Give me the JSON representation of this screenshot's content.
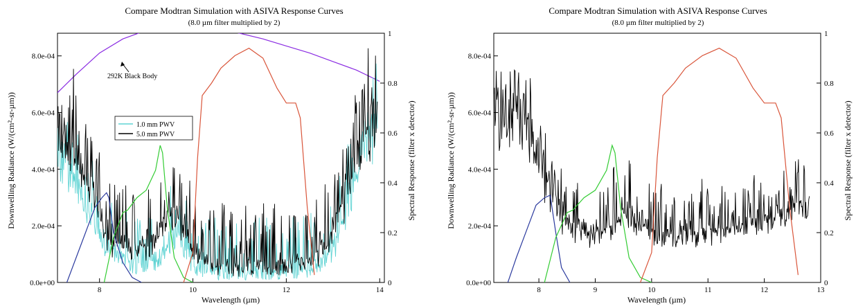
{
  "chart_data": [
    {
      "type": "line",
      "title": "Compare Modtran Simulation with ASIVA Response Curves",
      "subtitle": "(8.0 µm filter multiplied by 2)",
      "xlabel": "Wavelength (µm)",
      "ylabel": "Downwelling Radiance (W/(cm²-sr-µm))",
      "y2label": "Spectral Response (filter x detector)",
      "xlim": [
        7.1,
        14.1
      ],
      "ylim": [
        0,
        0.00088
      ],
      "y2lim": [
        0,
        1
      ],
      "xticks": [
        8,
        10,
        12,
        14
      ],
      "yticks": [
        0,
        0.0002,
        0.0004,
        0.0006,
        0.0008
      ],
      "ytick_labels": [
        "0.0e+00",
        "2.0e-04",
        "4.0e-04",
        "6.0e-04",
        "8.0e-04"
      ],
      "y2ticks": [
        0,
        0.2,
        0.4,
        0.6,
        0.8,
        1
      ],
      "y2tick_labels": [
        "0",
        "0.2",
        "0.4",
        "0.6",
        "0.8",
        "1"
      ],
      "legend": {
        "placement": "upper-left-center",
        "entries": [
          {
            "label": "1.0 mm PWV",
            "color": "#5fd3d3"
          },
          {
            "label": "5.0 mm PWV",
            "color": "#000000"
          }
        ]
      },
      "annotation": {
        "text": "292K Black Body",
        "arrow_to": [
          8.7,
          0.00089
        ]
      },
      "series": [
        {
          "name": "292K Black Body",
          "color": "#8a2be2",
          "axis": "left",
          "kind": "smooth",
          "x": [
            7.1,
            7.5,
            8.0,
            8.5,
            9.0,
            9.5,
            9.9,
            10.5,
            11.0,
            11.5,
            12.0,
            12.5,
            13.0,
            13.5,
            14.0
          ],
          "y": [
            0.00067,
            0.000735,
            0.00081,
            0.00086,
            0.00089,
            0.000902,
            0.000903,
            0.000895,
            0.00088,
            0.00086,
            0.000835,
            0.00081,
            0.00078,
            0.00075,
            0.00071
          ]
        },
        {
          "name": "1.0 mm PWV",
          "color": "#5fd3d3",
          "axis": "left",
          "kind": "noisy",
          "x": [
            7.1,
            7.3,
            7.5,
            7.7,
            7.9,
            8.0,
            8.1,
            8.2,
            8.3,
            8.5,
            8.7,
            9.0,
            9.3,
            9.5,
            9.7,
            9.9,
            10.0,
            10.2,
            10.5,
            11.0,
            11.5,
            12.0,
            12.5,
            12.8,
            13.0,
            13.2,
            13.4,
            13.6,
            13.8,
            13.95
          ],
          "y": [
            0.00048,
            0.00042,
            0.00036,
            0.00026,
            0.0002,
            0.00016,
            0.00012,
            0.0001,
            8e-05,
            6e-05,
            4e-05,
            4e-05,
            6e-05,
            0.00012,
            0.00018,
            8e-05,
            4e-05,
            2e-05,
            1e-05,
            1e-05,
            1e-05,
            1e-05,
            2e-05,
            5e-05,
            0.0001,
            0.0002,
            0.00035,
            0.00048,
            0.00058,
            0.00064
          ],
          "amp": 0.00014
        },
        {
          "name": "5.0 mm PWV",
          "color": "#000000",
          "axis": "left",
          "kind": "noisy",
          "x": [
            7.1,
            7.3,
            7.5,
            7.7,
            7.9,
            8.0,
            8.1,
            8.2,
            8.4,
            8.6,
            8.8,
            9.0,
            9.3,
            9.5,
            9.7,
            9.9,
            10.0,
            10.3,
            10.6,
            11.0,
            11.5,
            12.0,
            12.4,
            12.8,
            13.0,
            13.2,
            13.4,
            13.6,
            13.8,
            13.95
          ],
          "y": [
            0.00062,
            0.00058,
            0.00052,
            0.00042,
            0.00032,
            0.00024,
            0.00018,
            0.00014,
            0.00012,
            0.0001,
            0.0001,
            0.0001,
            0.00016,
            0.00024,
            0.00022,
            0.00016,
            8e-05,
            4e-05,
            3e-05,
            3e-05,
            3e-05,
            3e-05,
            5e-05,
            0.0001,
            0.00018,
            0.00028,
            0.00042,
            0.00055,
            0.00062,
            0.00066
          ],
          "amp": 0.00016
        },
        {
          "name": "",
          "color": "#2b3a9e",
          "axis": "right",
          "kind": "smooth",
          "x": [
            7.3,
            7.5,
            7.7,
            7.9,
            8.05,
            8.15,
            8.2,
            8.3,
            8.5,
            8.7,
            8.9
          ],
          "y": [
            0.0,
            0.1,
            0.2,
            0.3,
            0.34,
            0.36,
            0.34,
            0.2,
            0.08,
            0.02,
            0.0
          ]
        },
        {
          "name": "",
          "color": "#33cc33",
          "axis": "right",
          "kind": "smooth",
          "x": [
            8.1,
            8.3,
            8.5,
            8.6,
            8.8,
            9.0,
            9.2,
            9.3,
            9.35,
            9.45,
            9.6,
            9.8,
            10.0
          ],
          "y": [
            0.0,
            0.18,
            0.28,
            0.29,
            0.34,
            0.37,
            0.45,
            0.55,
            0.52,
            0.3,
            0.1,
            0.02,
            0.0
          ]
        },
        {
          "name": "",
          "color": "#d9553a",
          "axis": "right",
          "kind": "smooth",
          "x": [
            9.8,
            10.0,
            10.1,
            10.2,
            10.4,
            10.6,
            10.9,
            11.2,
            11.5,
            11.8,
            12.0,
            12.2,
            12.3,
            12.45,
            12.6
          ],
          "y": [
            0.0,
            0.12,
            0.5,
            0.75,
            0.8,
            0.86,
            0.91,
            0.94,
            0.9,
            0.78,
            0.72,
            0.72,
            0.66,
            0.3,
            0.03
          ]
        }
      ]
    },
    {
      "type": "line",
      "title": "Compare Modtran Simulation with ASIVA Response Curves",
      "subtitle": "(8.0 µm filter multiplied by 2)",
      "xlabel": "Wavelength (µm)",
      "ylabel": "Downwelling Radiance (W/(cm²-sr-µm))",
      "y2label": "Spectral Response (filter x detector)",
      "xlim": [
        7.2,
        13.0
      ],
      "ylim": [
        0,
        0.00088
      ],
      "y2lim": [
        0,
        1
      ],
      "xticks": [
        8,
        9,
        10,
        11,
        12,
        13
      ],
      "yticks": [
        0,
        0.0002,
        0.0004,
        0.0006,
        0.0008
      ],
      "ytick_labels": [
        "0.0e+00",
        "2.0e-04",
        "4.0e-04",
        "6.0e-04",
        "8.0e-04"
      ],
      "y2ticks": [
        0,
        0.2,
        0.4,
        0.6,
        0.8,
        1
      ],
      "y2tick_labels": [
        "0",
        "0.2",
        "0.4",
        "0.6",
        "0.8",
        "1"
      ],
      "series": [
        {
          "name": "",
          "color": "#000000",
          "axis": "left",
          "kind": "noisy",
          "x": [
            7.2,
            7.4,
            7.6,
            7.8,
            8.0,
            8.1,
            8.2,
            8.4,
            8.6,
            8.8,
            9.0,
            9.2,
            9.4,
            9.6,
            9.8,
            10.0,
            10.2,
            10.5,
            11.0,
            11.5,
            12.0,
            12.3,
            12.6,
            12.8
          ],
          "y": [
            0.00066,
            0.00068,
            0.00066,
            0.00064,
            0.00052,
            0.00042,
            0.00034,
            0.00025,
            0.0002,
            0.00018,
            0.00018,
            0.0002,
            0.00024,
            0.00026,
            0.00022,
            0.00017,
            0.00016,
            0.00017,
            0.00018,
            0.0002,
            0.00022,
            0.00024,
            0.00028,
            0.0003
          ],
          "amp": 0.00013
        },
        {
          "name": "",
          "color": "#2b3a9e",
          "axis": "right",
          "kind": "smooth",
          "x": [
            7.45,
            7.6,
            7.8,
            7.95,
            8.1,
            8.2,
            8.3,
            8.4,
            8.55
          ],
          "y": [
            0.0,
            0.1,
            0.22,
            0.31,
            0.34,
            0.35,
            0.2,
            0.06,
            0.0
          ]
        },
        {
          "name": "",
          "color": "#33cc33",
          "axis": "right",
          "kind": "smooth",
          "x": [
            8.1,
            8.3,
            8.5,
            8.6,
            8.8,
            9.0,
            9.2,
            9.3,
            9.35,
            9.45,
            9.6,
            9.8,
            10.0
          ],
          "y": [
            0.0,
            0.18,
            0.28,
            0.29,
            0.34,
            0.37,
            0.45,
            0.55,
            0.52,
            0.3,
            0.1,
            0.02,
            0.0
          ]
        },
        {
          "name": "",
          "color": "#d9553a",
          "axis": "right",
          "kind": "smooth",
          "x": [
            9.8,
            10.0,
            10.1,
            10.2,
            10.4,
            10.6,
            10.9,
            11.2,
            11.5,
            11.8,
            12.0,
            12.2,
            12.3,
            12.45,
            12.6
          ],
          "y": [
            0.0,
            0.12,
            0.5,
            0.75,
            0.8,
            0.86,
            0.91,
            0.94,
            0.9,
            0.78,
            0.72,
            0.72,
            0.66,
            0.3,
            0.03
          ]
        }
      ]
    }
  ]
}
